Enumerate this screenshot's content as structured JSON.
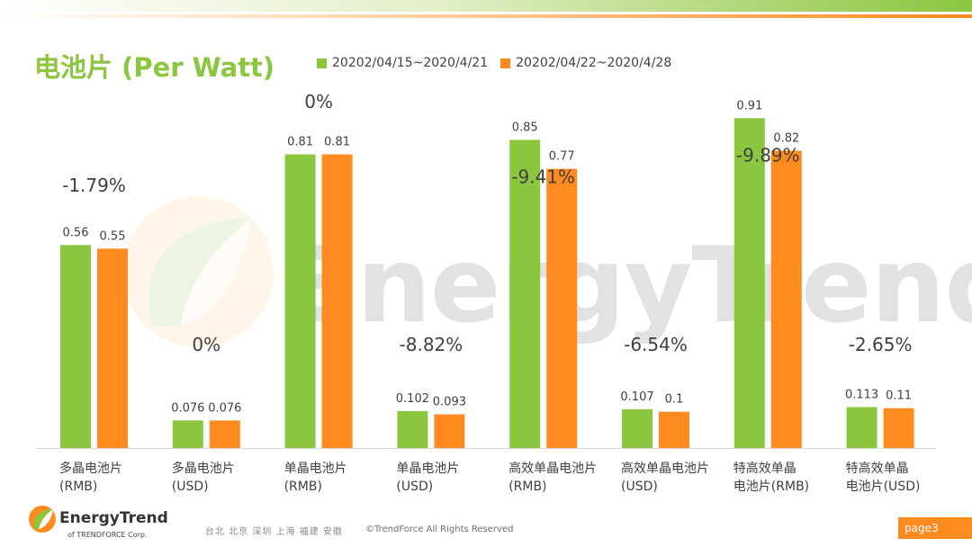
{
  "title": "电池片 (Per Watt)",
  "colors": {
    "series1": "#8cc63f",
    "series2": "#ff8a1f",
    "title": "#8cc63f",
    "page_tag": "#ff8a1f"
  },
  "legend": [
    {
      "label": "20202/04/15~2020/4/21",
      "color": "#8cc63f"
    },
    {
      "label": "20202/04/22~2020/4/28",
      "color": "#ff8a1f"
    }
  ],
  "chart_data": {
    "type": "bar",
    "title": "电池片 (Per Watt)",
    "categories": [
      "多晶电池片\n(RMB)",
      "多晶电池片\n(USD)",
      "单晶电池片\n(RMB)",
      "单晶电池片\n(USD)",
      "高效单晶电池片\n(RMB)",
      "高效单晶电池片\n(USD)",
      "特高效单晶\n电池片(RMB)",
      "特高效单晶\n电池片(USD)"
    ],
    "series": [
      {
        "name": "20202/04/15~2020/4/21",
        "values": [
          0.56,
          0.076,
          0.81,
          0.102,
          0.85,
          0.107,
          0.91,
          0.113
        ]
      },
      {
        "name": "20202/04/22~2020/4/28",
        "values": [
          0.55,
          0.076,
          0.81,
          0.093,
          0.77,
          0.1,
          0.82,
          0.11
        ]
      }
    ],
    "changes": [
      "-1.79%",
      "0%",
      "0%",
      "-8.82%",
      "-9.41%",
      "-6.54%",
      "-9.89%",
      "-2.65%"
    ],
    "grid": false,
    "legend_position": "top"
  },
  "watermark": {
    "text": "EnergyTrend"
  },
  "footer": {
    "brand": "EnergyTrend",
    "sub": "of TRENDFORCE Corp.",
    "cities": "台北 北京 深圳 上海 福建 安徽",
    "copyright": "©TrendForce All Rights Reserved",
    "page": "page3"
  }
}
